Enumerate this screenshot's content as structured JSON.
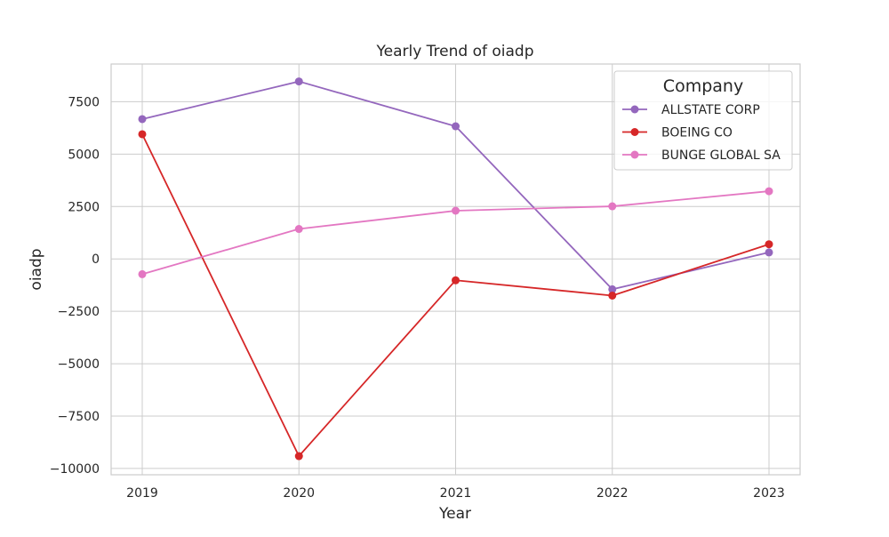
{
  "chart_data": {
    "type": "line",
    "title": "Yearly Trend of oiadp",
    "xlabel": "Year",
    "ylabel": "oiadp",
    "x": [
      "2019",
      "2020",
      "2021",
      "2022",
      "2023"
    ],
    "ylim": [
      -10300,
      9300
    ],
    "yticks": [
      -10000,
      -7500,
      -5000,
      -2500,
      0,
      2500,
      5000,
      7500
    ],
    "ytick_labels": [
      "−10000",
      "−7500",
      "−5000",
      "−2500",
      "0",
      "2500",
      "5000",
      "7500"
    ],
    "grid": true,
    "legend": {
      "title": "Company",
      "position": "top-right"
    },
    "series": [
      {
        "name": "ALLSTATE CORP",
        "color": "#9467bd",
        "values": [
          6670,
          8470,
          6330,
          -1450,
          310
        ]
      },
      {
        "name": "BOEING CO",
        "color": "#d62728",
        "values": [
          5950,
          -9410,
          -1020,
          -1750,
          700
        ]
      },
      {
        "name": "BUNGE GLOBAL SA",
        "color": "#e377c2",
        "values": [
          -730,
          1430,
          2300,
          2510,
          3230
        ]
      }
    ]
  }
}
